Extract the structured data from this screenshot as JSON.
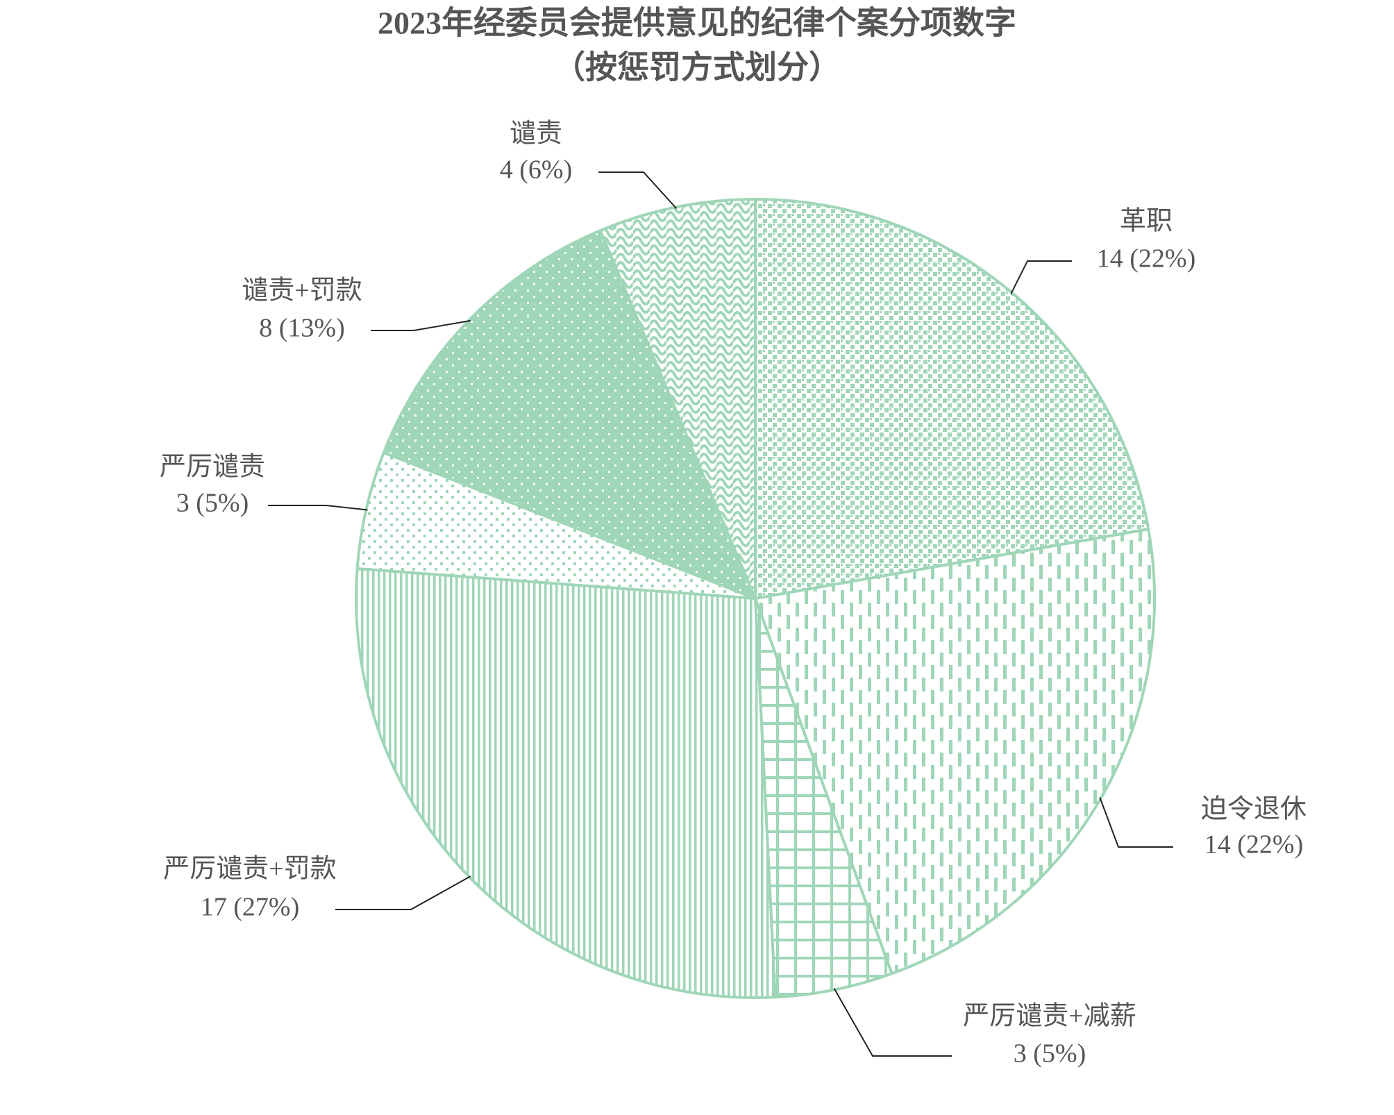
{
  "chart_data": {
    "type": "pie",
    "title": "2023年经委员会提供意见的纪律个案分项数字",
    "subtitle": "（按惩罚方式划分）",
    "categories": [
      "革职",
      "迫令退休",
      "严厉谴责+减薪",
      "严厉谴责+罚款",
      "严厉谴责",
      "谴责+罚款",
      "谴责"
    ],
    "values": [
      14,
      14,
      3,
      17,
      3,
      8,
      4
    ],
    "value_labels": [
      "14 (22%)",
      "14 (22%)",
      "3 (5%)",
      "17 (27%)",
      "3 (5%)",
      "8 (13%)",
      "4 (6%)"
    ],
    "color": "#9fd6b7"
  }
}
